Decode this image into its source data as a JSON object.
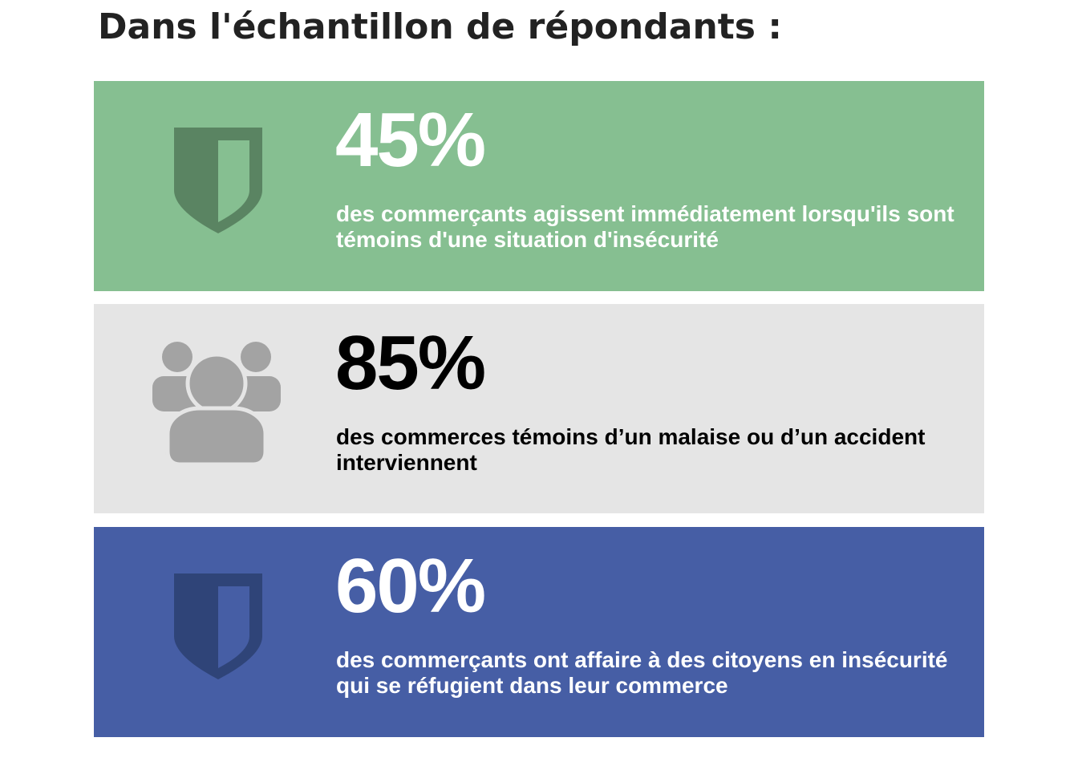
{
  "title": "Dans l'échantillon de répondants :",
  "cards": [
    {
      "icon": "shield-icon",
      "percent": "45%",
      "description": "des commerçants agissent immédiatement lorsqu'ils sont témoins d'une situation d'insécurité",
      "background": "#86bf91",
      "text_color": "#ffffff",
      "icon_color": "#5a8462"
    },
    {
      "icon": "group-people-icon",
      "percent": "85%",
      "description": "des commerces témoins d’un malaise ou d’un accident interviennent",
      "background": "#e5e5e5",
      "text_color": "#000000",
      "icon_color": "#a3a3a3"
    },
    {
      "icon": "shield-icon",
      "percent": "60%",
      "description": "des commerçants ont affaire à des citoyens en insécurité qui se réfugient dans leur commerce",
      "background": "#465ea5",
      "text_color": "#ffffff",
      "icon_color": "#2f4478"
    }
  ]
}
